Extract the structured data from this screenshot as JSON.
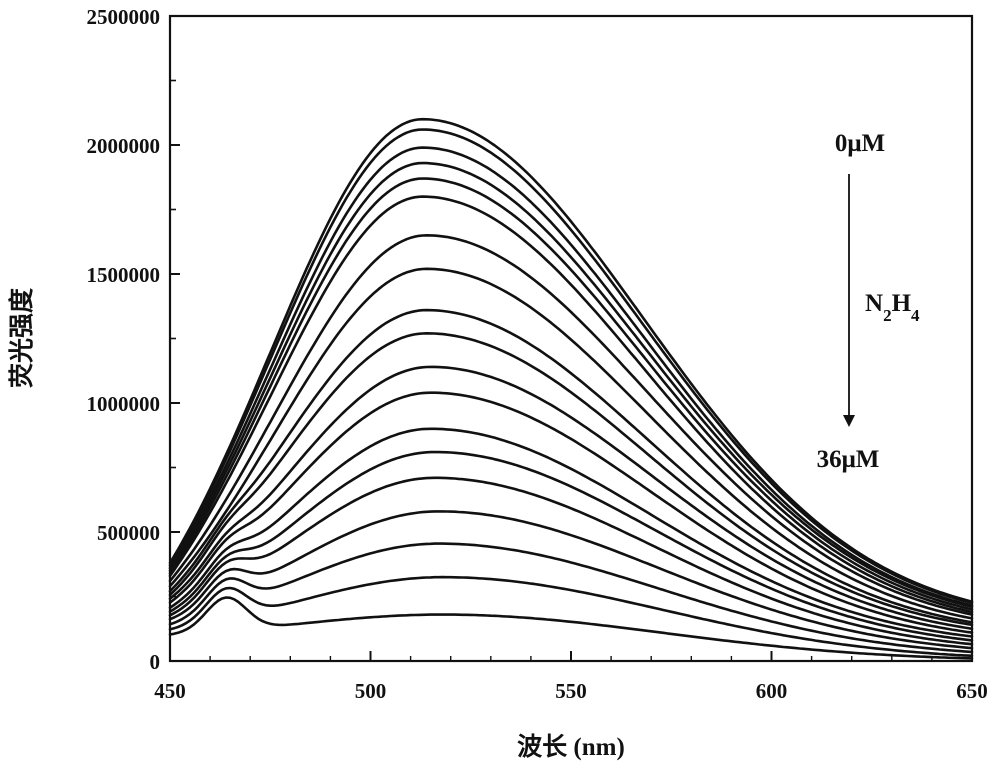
{
  "chart_data": {
    "type": "line",
    "xlabel": "波长 (nm)",
    "ylabel": "荧光强度",
    "xlim": [
      450,
      650
    ],
    "ylim": [
      0,
      2500000
    ],
    "x_ticks": [
      450,
      500,
      550,
      600,
      650
    ],
    "y_ticks": [
      0,
      500000,
      1000000,
      1500000,
      2000000,
      2500000
    ],
    "x_tick_labels": [
      "450",
      "500",
      "550",
      "600",
      "650"
    ],
    "y_tick_labels": [
      "0",
      "500000",
      "1000000",
      "1500000",
      "2000000",
      "2500000"
    ],
    "grid": false,
    "annotations": {
      "top_label": "0μM",
      "middle_label": "N2H4",
      "bottom_label": "36μM",
      "arrow_direction": "down"
    },
    "series": [
      {
        "peak": 2100000,
        "peak_x": 513,
        "start": 380000,
        "end": 230000,
        "shoulder": 0
      },
      {
        "peak": 2060000,
        "peak_x": 513,
        "start": 370000,
        "end": 225000,
        "shoulder": 0
      },
      {
        "peak": 1990000,
        "peak_x": 513,
        "start": 360000,
        "end": 215000,
        "shoulder": 0
      },
      {
        "peak": 1930000,
        "peak_x": 513,
        "start": 350000,
        "end": 210000,
        "shoulder": 0
      },
      {
        "peak": 1870000,
        "peak_x": 513,
        "start": 340000,
        "end": 200000,
        "shoulder": 0
      },
      {
        "peak": 1800000,
        "peak_x": 513,
        "start": 330000,
        "end": 190000,
        "shoulder": 0
      },
      {
        "peak": 1650000,
        "peak_x": 514,
        "start": 310000,
        "end": 180000,
        "shoulder": 0
      },
      {
        "peak": 1520000,
        "peak_x": 514,
        "start": 290000,
        "end": 165000,
        "shoulder": 0
      },
      {
        "peak": 1360000,
        "peak_x": 514,
        "start": 270000,
        "end": 150000,
        "shoulder": 30000
      },
      {
        "peak": 1270000,
        "peak_x": 514,
        "start": 255000,
        "end": 140000,
        "shoulder": 40000
      },
      {
        "peak": 1140000,
        "peak_x": 515,
        "start": 240000,
        "end": 125000,
        "shoulder": 50000
      },
      {
        "peak": 1040000,
        "peak_x": 515,
        "start": 225000,
        "end": 110000,
        "shoulder": 60000
      },
      {
        "peak": 900000,
        "peak_x": 515,
        "start": 205000,
        "end": 95000,
        "shoulder": 70000
      },
      {
        "peak": 810000,
        "peak_x": 516,
        "start": 190000,
        "end": 80000,
        "shoulder": 80000
      },
      {
        "peak": 710000,
        "peak_x": 516,
        "start": 175000,
        "end": 65000,
        "shoulder": 90000
      },
      {
        "peak": 580000,
        "peak_x": 517,
        "start": 160000,
        "end": 50000,
        "shoulder": 100000
      },
      {
        "peak": 455000,
        "peak_x": 517,
        "start": 140000,
        "end": 35000,
        "shoulder": 110000
      },
      {
        "peak": 325000,
        "peak_x": 518,
        "start": 120000,
        "end": 20000,
        "shoulder": 120000
      },
      {
        "peak": 180000,
        "peak_x": 518,
        "start": 100000,
        "end": 10000,
        "shoulder": 130000
      }
    ]
  }
}
